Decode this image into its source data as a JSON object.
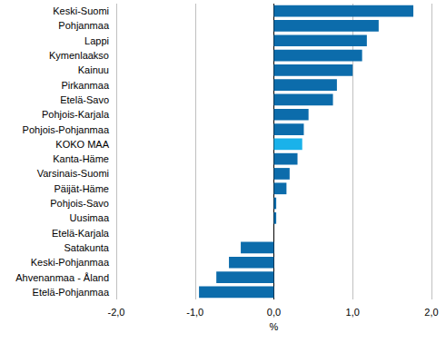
{
  "chart_data": {
    "type": "bar",
    "orientation": "horizontal",
    "categories": [
      "Keski-Suomi",
      "Pohjanmaa",
      "Lappi",
      "Kymenlaakso",
      "Kainuu",
      "Pirkanmaa",
      "Etelä-Savo",
      "Pohjois-Karjala",
      "Pohjois-Pohjanmaa",
      "KOKO MAA",
      "Kanta-Häme",
      "Varsinais-Suomi",
      "Päijät-Häme",
      "Pohjois-Savo",
      "Uusimaa",
      "Etelä-Karjala",
      "Satakunta",
      "Keski-Pohjanmaa",
      "Ahvenanmaa - Åland",
      "Etelä-Pohjanmaa"
    ],
    "values": [
      1.77,
      1.33,
      1.18,
      1.12,
      1.0,
      0.8,
      0.75,
      0.44,
      0.38,
      0.36,
      0.3,
      0.2,
      0.16,
      0.03,
      0.03,
      0.0,
      -0.42,
      -0.57,
      -0.73,
      -0.95
    ],
    "colors": [
      "#0c6cab",
      "#0c6cab",
      "#0c6cab",
      "#0c6cab",
      "#0c6cab",
      "#0c6cab",
      "#0c6cab",
      "#0c6cab",
      "#0c6cab",
      "#1ab2ea",
      "#0c6cab",
      "#0c6cab",
      "#0c6cab",
      "#0c6cab",
      "#0c6cab",
      "#0c6cab",
      "#0c6cab",
      "#0c6cab",
      "#0c6cab",
      "#0c6cab"
    ],
    "x_label": "%",
    "xlim": [
      -2,
      2
    ],
    "xticks": [
      {
        "value": -2,
        "label": "-2,0"
      },
      {
        "value": -1,
        "label": "-1,0"
      },
      {
        "value": 0,
        "label": "0,0"
      },
      {
        "value": 1,
        "label": "1,0"
      },
      {
        "value": 2,
        "label": "2,0"
      }
    ],
    "grid": true
  }
}
